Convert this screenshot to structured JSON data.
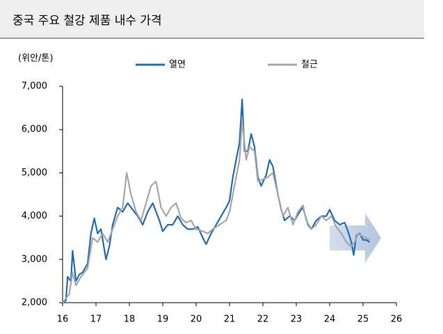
{
  "chart_data": {
    "type": "line",
    "title": "중국 주요 철강 제품 내수 가격",
    "y_label": "(위안/톤)",
    "xlim": [
      16,
      26
    ],
    "xticks": [
      16,
      17,
      18,
      19,
      20,
      21,
      22,
      23,
      24,
      25,
      26
    ],
    "ylim": [
      2000,
      7000
    ],
    "yticks": [
      {
        "value": 2000,
        "label": "2,000"
      },
      {
        "value": 3000,
        "label": "3,000"
      },
      {
        "value": 4000,
        "label": "4,000"
      },
      {
        "value": 5000,
        "label": "5,000"
      },
      {
        "value": 6000,
        "label": "6,000"
      },
      {
        "value": 7000,
        "label": "7,000"
      }
    ],
    "grid": false,
    "series": [
      {
        "name": "열연",
        "color": "#1f6dbd",
        "x": [
          16.0,
          16.1,
          16.15,
          16.25,
          16.3,
          16.4,
          16.5,
          16.6,
          16.75,
          16.85,
          16.95,
          17.05,
          17.15,
          17.3,
          17.4,
          17.5,
          17.65,
          17.8,
          17.95,
          18.1,
          18.25,
          18.4,
          18.55,
          18.7,
          18.9,
          19.0,
          19.15,
          19.3,
          19.45,
          19.6,
          19.75,
          19.9,
          20.05,
          20.2,
          20.3,
          20.45,
          20.6,
          20.75,
          20.9,
          21.0,
          21.1,
          21.2,
          21.3,
          21.38,
          21.45,
          21.55,
          21.65,
          21.75,
          21.85,
          21.95,
          22.1,
          22.2,
          22.3,
          22.45,
          22.55,
          22.65,
          22.8,
          22.95,
          23.1,
          23.2,
          23.35,
          23.45,
          23.6,
          23.75,
          23.9,
          24.0,
          24.15,
          24.3,
          24.45,
          24.55,
          24.65,
          24.72,
          24.8,
          24.9,
          25.0,
          25.1,
          25.2
        ],
        "values": [
          2000,
          2050,
          2600,
          2500,
          3200,
          2500,
          2650,
          2700,
          2900,
          3600,
          3950,
          3600,
          3700,
          3000,
          3300,
          3800,
          4200,
          4100,
          4300,
          4150,
          4000,
          3800,
          4100,
          4300,
          3900,
          3650,
          3800,
          3800,
          4000,
          3800,
          3700,
          3700,
          3750,
          3500,
          3350,
          3600,
          3800,
          4000,
          4200,
          4350,
          4900,
          5300,
          5700,
          6700,
          5500,
          5500,
          5900,
          5600,
          4900,
          4700,
          4950,
          5300,
          5150,
          4500,
          4150,
          3900,
          4000,
          3900,
          4100,
          4200,
          3800,
          3700,
          3900,
          4000,
          4000,
          4150,
          3900,
          3800,
          3850,
          3650,
          3400,
          3100,
          3550,
          3600,
          3450,
          3450,
          3400
        ]
      },
      {
        "name": "철근",
        "color": "#a6a6a6",
        "x": [
          16.0,
          16.2,
          16.3,
          16.4,
          16.55,
          16.75,
          16.9,
          17.05,
          17.2,
          17.35,
          17.5,
          17.65,
          17.8,
          17.92,
          18.05,
          18.2,
          18.35,
          18.5,
          18.65,
          18.8,
          18.95,
          19.1,
          19.25,
          19.4,
          19.55,
          19.7,
          19.85,
          20.0,
          20.2,
          20.35,
          20.5,
          20.7,
          20.9,
          21.0,
          21.15,
          21.3,
          21.38,
          21.5,
          21.6,
          21.75,
          21.85,
          22.0,
          22.15,
          22.3,
          22.45,
          22.6,
          22.75,
          22.9,
          23.05,
          23.2,
          23.3,
          23.45,
          23.6,
          23.75,
          23.9,
          24.05,
          24.2,
          24.35,
          24.5,
          24.65,
          24.75,
          24.85,
          24.95,
          25.1,
          25.2
        ],
        "values": [
          2000,
          2200,
          2700,
          2400,
          2600,
          2800,
          3500,
          3400,
          3600,
          3400,
          3700,
          4000,
          4200,
          5000,
          4500,
          4100,
          3900,
          4300,
          4700,
          4800,
          4200,
          4000,
          4200,
          4300,
          3950,
          3850,
          3900,
          3700,
          3650,
          3600,
          3700,
          3800,
          3900,
          4100,
          4700,
          5300,
          6200,
          5300,
          5600,
          5500,
          4800,
          4850,
          4900,
          5000,
          4500,
          4000,
          4200,
          3800,
          4100,
          4250,
          3900,
          3700,
          3800,
          4000,
          3900,
          4000,
          3750,
          3600,
          3400,
          3300,
          3400,
          3600,
          3550,
          3500,
          3450
        ]
      }
    ]
  }
}
